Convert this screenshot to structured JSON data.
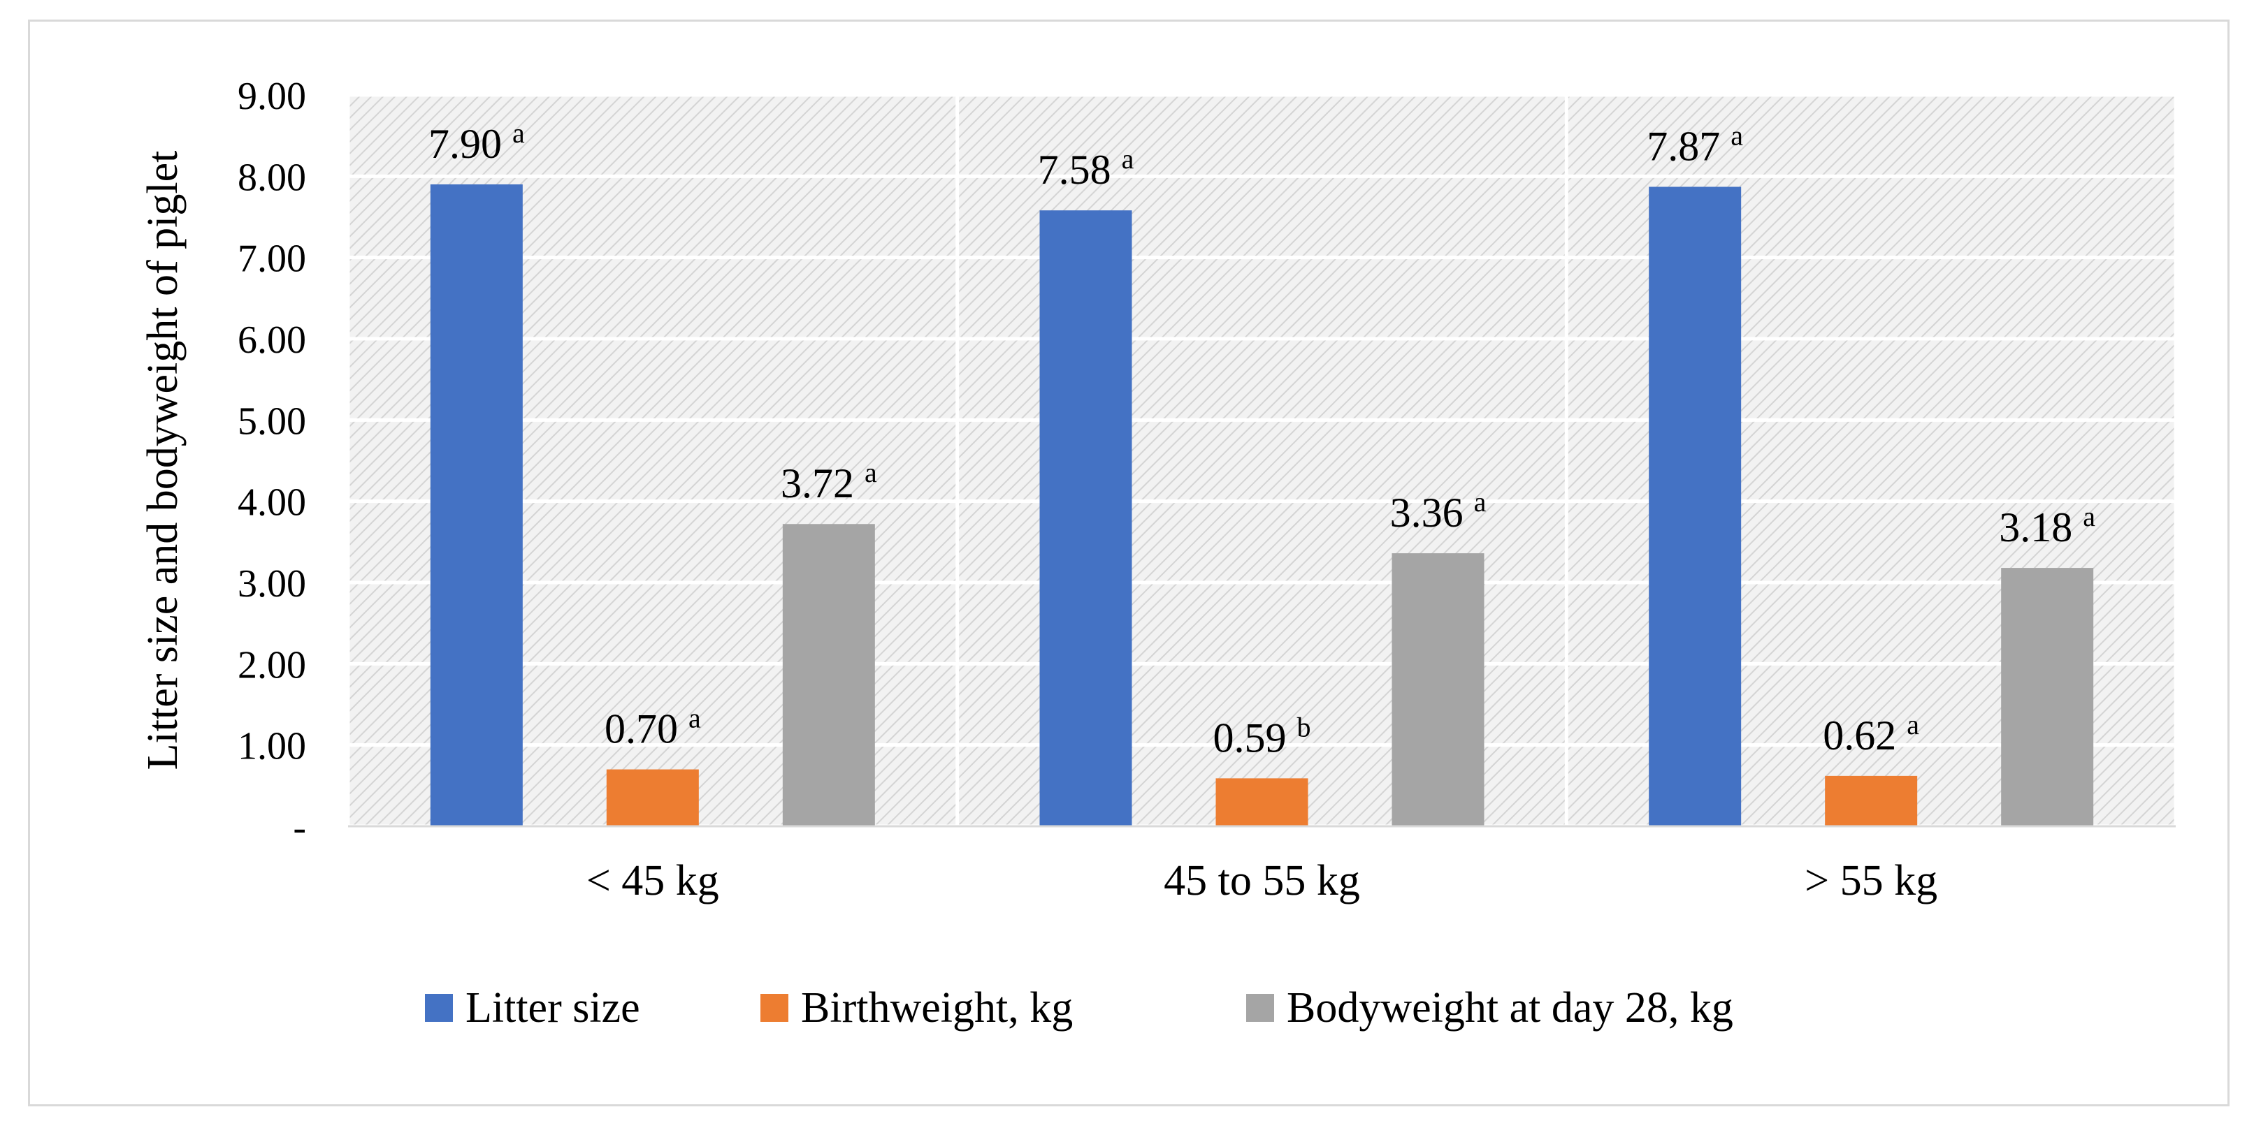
{
  "chart_data": {
    "type": "bar",
    "title": "",
    "xlabel": "",
    "ylabel": "Litter size and bodyweight of piglet",
    "ylim": [
      0,
      9
    ],
    "yticks": [
      {
        "value": 0,
        "label": "-"
      },
      {
        "value": 1,
        "label": "1.00"
      },
      {
        "value": 2,
        "label": "2.00"
      },
      {
        "value": 3,
        "label": "3.00"
      },
      {
        "value": 4,
        "label": "4.00"
      },
      {
        "value": 5,
        "label": "5.00"
      },
      {
        "value": 6,
        "label": "6.00"
      },
      {
        "value": 7,
        "label": "7.00"
      },
      {
        "value": 8,
        "label": "8.00"
      },
      {
        "value": 9,
        "label": "9.00"
      }
    ],
    "categories": [
      "< 45 kg",
      "45 to 55 kg",
      "> 55 kg"
    ],
    "series": [
      {
        "name": "Litter size",
        "color": "#4472c4",
        "values": [
          7.9,
          7.58,
          7.87
        ],
        "labels": [
          "7.90",
          "7.58",
          "7.87"
        ],
        "letters": [
          "a",
          "a",
          "a"
        ]
      },
      {
        "name": "Birthweight, kg",
        "color": "#ed7d31",
        "values": [
          0.7,
          0.59,
          0.62
        ],
        "labels": [
          "0.70",
          "0.59",
          "0.62"
        ],
        "letters": [
          "a",
          "b",
          "a"
        ]
      },
      {
        "name": "Bodyweight at day 28, kg",
        "color": "#a5a5a5",
        "values": [
          3.72,
          3.36,
          3.18
        ],
        "labels": [
          "3.72",
          "3.36",
          "3.18"
        ],
        "letters": [
          "a",
          "a",
          "a"
        ]
      }
    ],
    "grid": true,
    "legend_position": "bottom"
  }
}
